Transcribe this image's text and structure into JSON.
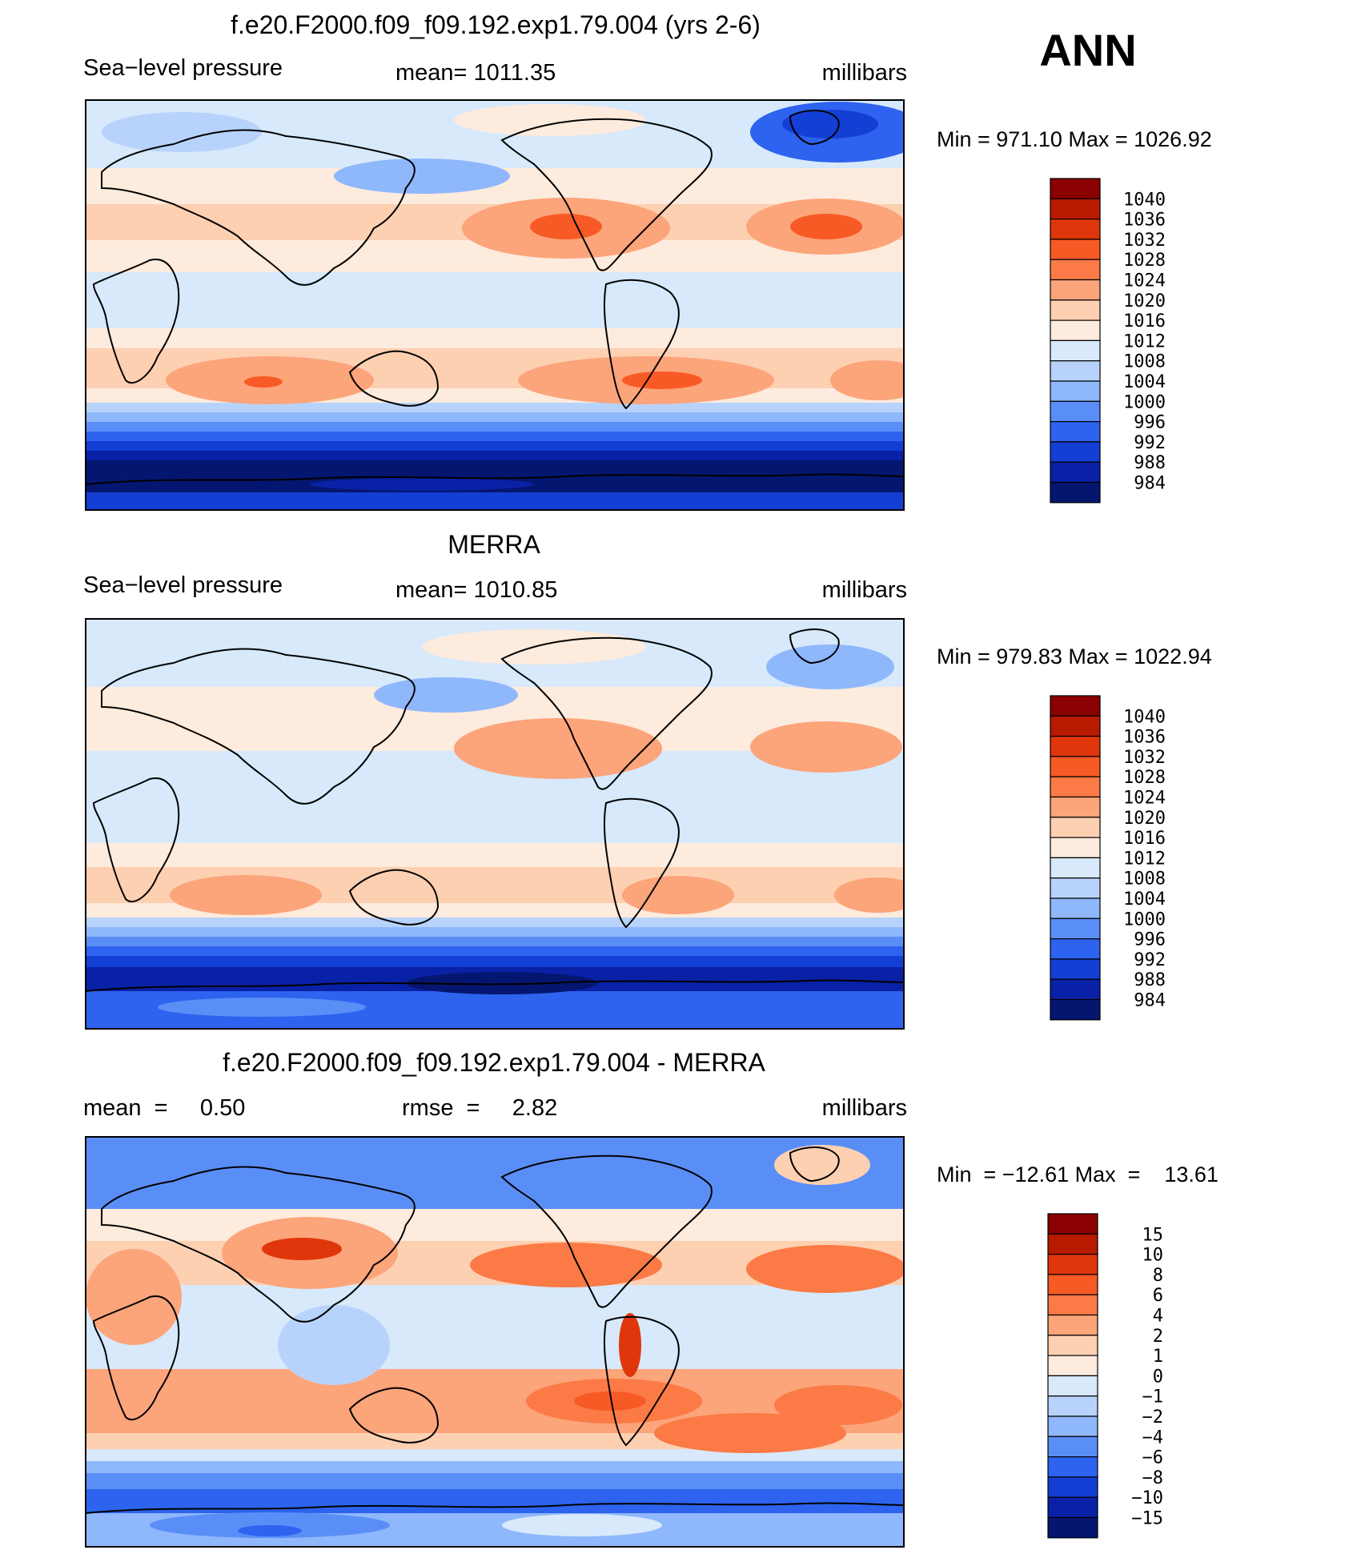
{
  "season": "ANN",
  "colors": {
    "frame": "#000000",
    "coast": "#000000",
    "text": "#000000"
  },
  "chart_data": [
    {
      "type": "heatmap",
      "id": "model",
      "title": "f.e20.F2000.f09_f09.192.exp1.79.004 (yrs 2-6)",
      "left_label": "Sea−level pressure",
      "center_label": "mean=  1011.35",
      "units": "millibars",
      "minmax": "Min  =  971.10 Max  =  1026.92",
      "min": 971.1,
      "max": 1026.92,
      "mean": 1011.35,
      "colorbar": {
        "levels": [
          "1040",
          "1036",
          "1032",
          "1028",
          "1024",
          "1020",
          "1016",
          "1012",
          "1008",
          "1004",
          "1000",
          "996",
          "992",
          "988",
          "984"
        ],
        "colors": [
          "#8b0000",
          "#b81a00",
          "#e0360b",
          "#f85a25",
          "#fb7a45",
          "#fca47a",
          "#fdd0b2",
          "#fdebdd",
          "#d7e9fb",
          "#b8d3fb",
          "#8fb7fb",
          "#5a8ef7",
          "#2d63ee",
          "#143fd5",
          "#0921a6",
          "#04166f"
        ]
      }
    },
    {
      "type": "heatmap",
      "id": "obs",
      "title": "MERRA",
      "left_label": "Sea−level pressure",
      "center_label": "mean=  1010.85",
      "units": "millibars",
      "minmax": "Min  =  979.83 Max  =  1022.94",
      "min": 979.83,
      "max": 1022.94,
      "mean": 1010.85,
      "colorbar": {
        "levels": [
          "1040",
          "1036",
          "1032",
          "1028",
          "1024",
          "1020",
          "1016",
          "1012",
          "1008",
          "1004",
          "1000",
          "996",
          "992",
          "988",
          "984"
        ],
        "colors": [
          "#8b0000",
          "#b81a00",
          "#e0360b",
          "#f85a25",
          "#fb7a45",
          "#fca47a",
          "#fdd0b2",
          "#fdebdd",
          "#d7e9fb",
          "#b8d3fb",
          "#8fb7fb",
          "#5a8ef7",
          "#2d63ee",
          "#143fd5",
          "#0921a6",
          "#04166f"
        ]
      }
    },
    {
      "type": "heatmap",
      "id": "diff",
      "title": "f.e20.F2000.f09_f09.192.exp1.79.004 - MERRA",
      "left_label": "mean  =     0.50",
      "center_label": "rmse  =     2.82",
      "units": "millibars",
      "minmax": "Min  = −12.61 Max  =    13.61",
      "min": -12.61,
      "max": 13.61,
      "mean": 0.5,
      "rmse": 2.82,
      "colorbar": {
        "levels": [
          "15",
          "10",
          "8",
          "6",
          "4",
          "2",
          "1",
          "0",
          "−1",
          "−2",
          "−4",
          "−6",
          "−8",
          "−10",
          "−15"
        ],
        "colors": [
          "#8b0000",
          "#b81a00",
          "#e0360b",
          "#f85a25",
          "#fb7a45",
          "#fca47a",
          "#fdd0b2",
          "#fdebdd",
          "#d7e9fb",
          "#b8d3fb",
          "#8fb7fb",
          "#5a8ef7",
          "#2d63ee",
          "#143fd5",
          "#0921a6",
          "#04166f"
        ]
      }
    }
  ]
}
